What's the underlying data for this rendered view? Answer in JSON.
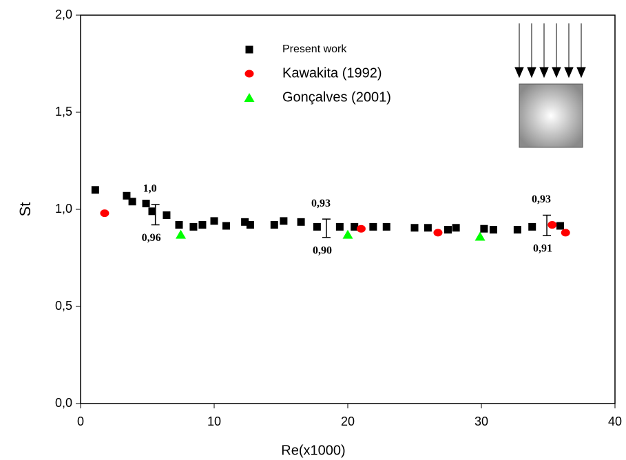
{
  "chart_data": {
    "type": "scatter",
    "x_label": "Re(x1000)",
    "y_label": "St",
    "xlim": [
      0,
      40
    ],
    "ylim": [
      0,
      2
    ],
    "xticks": [
      0,
      10,
      20,
      30,
      40
    ],
    "yticks": [
      {
        "value": 0,
        "label": "0,0"
      },
      {
        "value": 0.5,
        "label": "0,5"
      },
      {
        "value": 1,
        "label": "1,0"
      },
      {
        "value": 1.5,
        "label": "1,5"
      },
      {
        "value": 2,
        "label": "2,0"
      }
    ],
    "series": [
      {
        "name": "Present work",
        "color": "#000000",
        "marker": "square",
        "x": [
          1.1,
          3.45,
          3.87,
          4.9,
          5.36,
          6.44,
          7.37,
          8.45,
          9.12,
          10.0,
          10.9,
          12.3,
          12.7,
          14.5,
          15.2,
          16.5,
          17.7,
          19.4,
          20.5,
          21.9,
          22.9,
          25.0,
          26.0,
          27.5,
          28.1,
          30.2,
          30.9,
          32.7,
          33.8,
          35.9
        ],
        "values": [
          1.1,
          1.07,
          1.04,
          1.03,
          0.99,
          0.97,
          0.92,
          0.91,
          0.92,
          0.94,
          0.915,
          0.935,
          0.92,
          0.92,
          0.94,
          0.935,
          0.91,
          0.91,
          0.91,
          0.91,
          0.91,
          0.905,
          0.905,
          0.895,
          0.905,
          0.9,
          0.895,
          0.895,
          0.91,
          0.915
        ]
      },
      {
        "name": "Kawakita (1992)",
        "color": "#ff0000",
        "marker": "circle",
        "x": [
          1.8,
          21.0,
          26.75,
          35.3,
          36.3
        ],
        "values": [
          0.98,
          0.9,
          0.88,
          0.92,
          0.88
        ]
      },
      {
        "name": "Gonçalves (2001)",
        "color": "#00ff00",
        "marker": "triangle",
        "x": [
          7.5,
          20.0,
          29.9
        ],
        "values": [
          0.87,
          0.87,
          0.86
        ]
      }
    ],
    "error_bars": [
      {
        "x": 5.6,
        "high": 1.025,
        "low": 0.92,
        "labels": [
          "1,0",
          "0,96"
        ]
      },
      {
        "x": 18.4,
        "high": 0.95,
        "low": 0.855,
        "labels": [
          "0,93",
          "0,90"
        ]
      },
      {
        "x": 34.9,
        "high": 0.97,
        "low": 0.865,
        "labels": [
          "0,93",
          "0,91"
        ]
      }
    ]
  }
}
